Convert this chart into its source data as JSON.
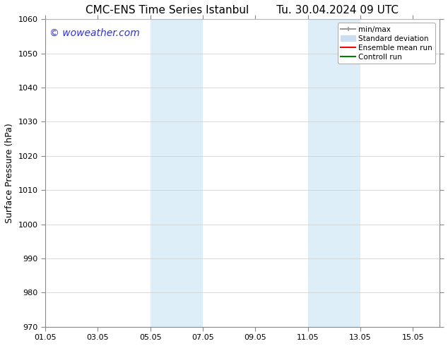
{
  "title_left": "CMC-ENS Time Series Istanbul",
  "title_right": "Tu. 30.04.2024 09 UTC",
  "ylabel": "Surface Pressure (hPa)",
  "ylim": [
    970,
    1060
  ],
  "yticks": [
    970,
    980,
    990,
    1000,
    1010,
    1020,
    1030,
    1040,
    1050,
    1060
  ],
  "xlim": [
    0,
    15
  ],
  "xtick_labels": [
    "01.05",
    "03.05",
    "05.05",
    "07.05",
    "09.05",
    "11.05",
    "13.05",
    "15.05"
  ],
  "xtick_positions": [
    0,
    2,
    4,
    6,
    8,
    10,
    12,
    14
  ],
  "shaded_regions": [
    {
      "start": 4,
      "end": 6,
      "color": "#ddeef9"
    },
    {
      "start": 10,
      "end": 12,
      "color": "#ddeef9"
    }
  ],
  "watermark": "© woweather.com",
  "watermark_color": "#3333cc",
  "watermark_fontsize": 10,
  "legend_items": [
    {
      "label": "min/max",
      "color": "#999999",
      "lw": 1.5,
      "type": "line_caps"
    },
    {
      "label": "Standard deviation",
      "color": "#ccddf0",
      "lw": 8,
      "type": "patch"
    },
    {
      "label": "Ensemble mean run",
      "color": "red",
      "lw": 1.5,
      "type": "line"
    },
    {
      "label": "Controll run",
      "color": "green",
      "lw": 1.5,
      "type": "line"
    }
  ],
  "bg_color": "#ffffff",
  "spine_color": "#888888",
  "tick_color": "#555555",
  "title_fontsize": 11,
  "axis_label_fontsize": 9,
  "tick_fontsize": 8,
  "legend_fontsize": 7.5
}
